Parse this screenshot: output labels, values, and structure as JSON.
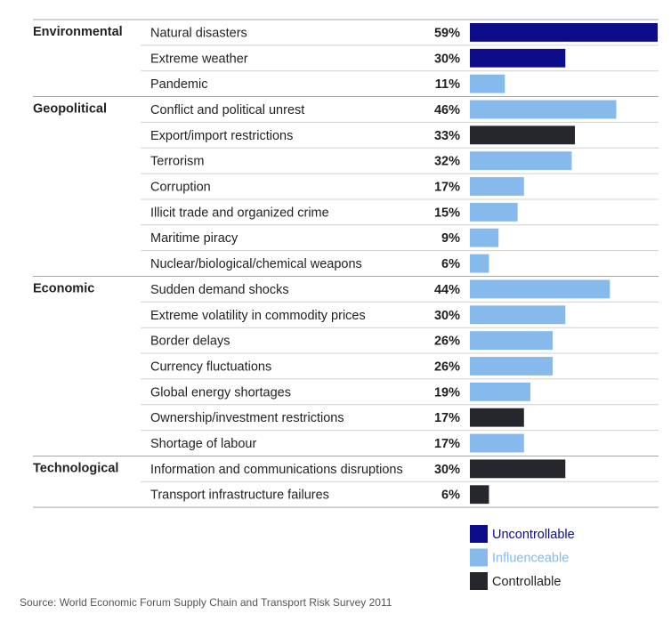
{
  "chart_data": {
    "type": "bar",
    "orientation": "horizontal",
    "value_format": "percent",
    "groups": [
      {
        "name": "Environmental",
        "rows": [
          {
            "label": "Natural disasters",
            "value": 59,
            "category": "uncontrollable"
          },
          {
            "label": "Extreme weather",
            "value": 30,
            "category": "uncontrollable"
          },
          {
            "label": "Pandemic",
            "value": 11,
            "category": "influenceable"
          }
        ]
      },
      {
        "name": "Geopolitical",
        "rows": [
          {
            "label": "Conflict and political unrest",
            "value": 46,
            "category": "influenceable"
          },
          {
            "label": "Export/import restrictions",
            "value": 33,
            "category": "controllable"
          },
          {
            "label": "Terrorism",
            "value": 32,
            "category": "influenceable"
          },
          {
            "label": "Corruption",
            "value": 17,
            "category": "influenceable"
          },
          {
            "label": "Illicit trade and organized crime",
            "value": 15,
            "category": "influenceable"
          },
          {
            "label": "Maritime piracy",
            "value": 9,
            "category": "influenceable"
          },
          {
            "label": "Nuclear/biological/chemical weapons",
            "value": 6,
            "category": "influenceable"
          }
        ]
      },
      {
        "name": "Economic",
        "rows": [
          {
            "label": "Sudden demand shocks",
            "value": 44,
            "category": "influenceable"
          },
          {
            "label": "Extreme volatility in commodity prices",
            "value": 30,
            "category": "influenceable"
          },
          {
            "label": "Border delays",
            "value": 26,
            "category": "influenceable"
          },
          {
            "label": "Currency fluctuations",
            "value": 26,
            "category": "influenceable"
          },
          {
            "label": "Global energy shortages",
            "value": 19,
            "category": "influenceable"
          },
          {
            "label": "Ownership/investment restrictions",
            "value": 17,
            "category": "controllable"
          },
          {
            "label": "Shortage of labour",
            "value": 17,
            "category": "influenceable"
          }
        ]
      },
      {
        "name": "Technological",
        "rows": [
          {
            "label": "Information and communications disruptions",
            "value": 30,
            "category": "controllable"
          },
          {
            "label": "Transport infrastructure failures",
            "value": 6,
            "category": "controllable"
          }
        ]
      }
    ],
    "legend": [
      {
        "key": "uncontrollable",
        "label": "Uncontrollable",
        "color": "#0d0d8a"
      },
      {
        "key": "influenceable",
        "label": "Influenceable",
        "color": "#86b9ec"
      },
      {
        "key": "controllable",
        "label": "Controllable",
        "color": "#25272c"
      }
    ],
    "legend_placement": "bottom-right",
    "xlim": [
      0,
      59
    ]
  },
  "source": "Source: World Economic Forum Supply Chain and Transport Risk Survey 2011"
}
